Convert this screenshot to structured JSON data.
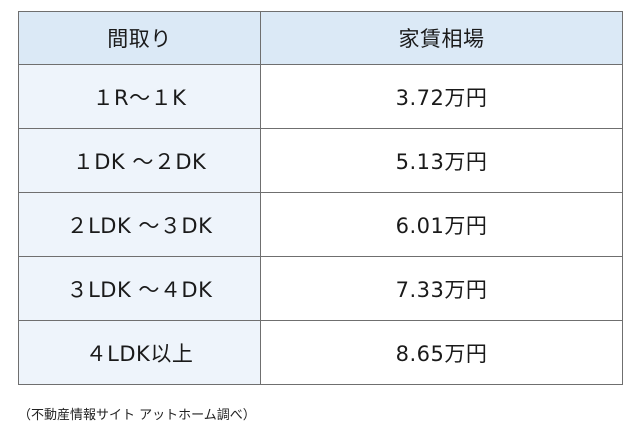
{
  "table": {
    "headers": {
      "layout": "間取り",
      "rent": "家賃相場"
    },
    "rows": [
      {
        "layout": "１R～１K",
        "rent": "3.72万円"
      },
      {
        "layout": "１DK ～２DK",
        "rent": "5.13万円"
      },
      {
        "layout": "２LDK ～３DK",
        "rent": "6.01万円"
      },
      {
        "layout": "３LDK ～４DK",
        "rent": "7.33万円"
      },
      {
        "layout": "４LDK以上",
        "rent": "8.65万円"
      }
    ]
  },
  "source_note": "（不動産情報サイト アットホーム調べ）"
}
